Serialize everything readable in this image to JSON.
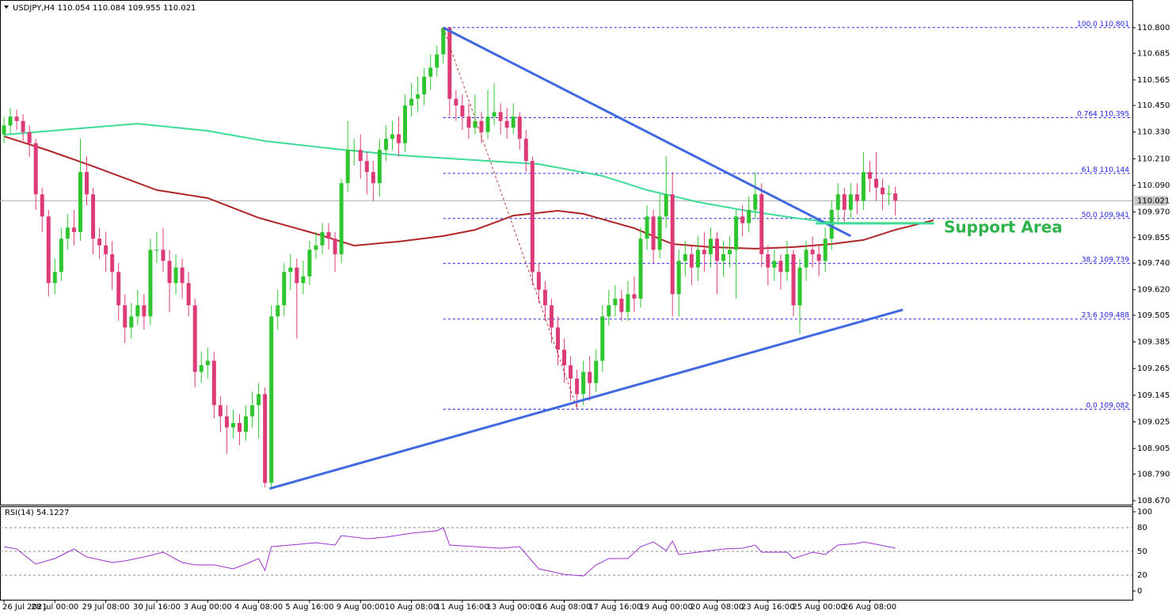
{
  "chart_data": {
    "type": "candlestick",
    "title": "USDJPY,H4  110.054 110.084 109.955 110.021",
    "categories": [
      "26 Jul 2021",
      null,
      null,
      null,
      null,
      null,
      null,
      null,
      "28 Jul 00:00",
      null,
      null,
      null,
      null,
      null,
      null,
      null,
      "29 Jul 08:00",
      null,
      null,
      null,
      null,
      null,
      null,
      null,
      "30 Jul 16:00",
      null,
      null,
      null,
      null,
      null,
      null,
      null,
      "3 Aug 00:00",
      null,
      null,
      null,
      null,
      null,
      null,
      null,
      "4 Aug 08:00",
      null,
      null,
      null,
      null,
      null,
      null,
      null,
      "5 Aug 16:00",
      null,
      null,
      null,
      null,
      null,
      null,
      null,
      "9 Aug 00:00",
      null,
      null,
      null,
      null,
      null,
      null,
      null,
      "10 Aug 08:00",
      null,
      null,
      null,
      null,
      null,
      null,
      null,
      "11 Aug 16:00",
      null,
      null,
      null,
      null,
      null,
      null,
      null,
      "13 Aug 00:00",
      null,
      null,
      null,
      null,
      null,
      null,
      null,
      "16 Aug 08:00",
      null,
      null,
      null,
      null,
      null,
      null,
      null,
      "17 Aug 16:00",
      null,
      null,
      null,
      null,
      null,
      null,
      null,
      "19 Aug 00:00",
      null,
      null,
      null,
      null,
      null,
      null,
      null,
      "20 Aug 08:00",
      null,
      null,
      null,
      null,
      null,
      null,
      null,
      "23 Aug 16:00",
      null,
      null,
      null,
      null,
      null,
      null,
      null,
      "25 Aug 00:00",
      null,
      null,
      null,
      null,
      null,
      null,
      null,
      "26 Aug 08:00",
      null,
      null,
      null,
      null
    ],
    "open": [
      110.32,
      110.36,
      110.4,
      110.38,
      110.33,
      110.28,
      110.05,
      109.95,
      109.65,
      109.7,
      109.85,
      109.9,
      109.88,
      110.15,
      110.05,
      109.85,
      109.82,
      109.78,
      109.7,
      109.55,
      109.45,
      109.5,
      109.55,
      109.5,
      109.8,
      109.8,
      109.75,
      109.65,
      109.72,
      109.65,
      109.55,
      109.25,
      109.28,
      109.3,
      109.1,
      109.05,
      109.0,
      109.02,
      108.98,
      109.05,
      109.1,
      109.15,
      108.75,
      109.5,
      109.55,
      109.7,
      109.72,
      109.65,
      109.68,
      109.8,
      109.82,
      109.88,
      109.85,
      109.78,
      110.1,
      110.25,
      110.25,
      110.2,
      110.15,
      110.1,
      110.25,
      110.3,
      110.32,
      110.28,
      110.45,
      110.48,
      110.5,
      110.58,
      110.62,
      110.68,
      110.8,
      110.48,
      110.45,
      110.4,
      110.35,
      110.38,
      110.33,
      110.4,
      110.42,
      110.38,
      110.35,
      110.4,
      110.3,
      110.2,
      109.7,
      109.62,
      109.55,
      109.45,
      109.35,
      109.28,
      109.22,
      109.15,
      109.25,
      109.2,
      109.3,
      109.5,
      109.55,
      109.58,
      109.52,
      109.6,
      109.58,
      109.85,
      109.95,
      109.8,
      109.95,
      110.05,
      109.6,
      109.75,
      109.78,
      109.72,
      109.8,
      109.78,
      109.85,
      109.75,
      109.78,
      109.8,
      109.95,
      109.92,
      109.98,
      110.05,
      109.78,
      109.72,
      109.75,
      109.7,
      109.78,
      109.55,
      109.72,
      109.8,
      109.78,
      109.75,
      109.85,
      109.98,
      110.05,
      109.98,
      110.05,
      110.02,
      110.15,
      110.12,
      110.08,
      110.05,
      110.054
    ],
    "high": [
      110.4,
      110.44,
      110.43,
      110.41,
      110.36,
      110.3,
      110.08,
      109.98,
      109.76,
      109.9,
      109.96,
      109.98,
      110.3,
      110.22,
      110.08,
      109.9,
      109.88,
      109.84,
      109.74,
      109.6,
      109.56,
      109.62,
      109.6,
      109.85,
      109.88,
      109.9,
      109.8,
      109.78,
      109.76,
      109.7,
      109.58,
      109.34,
      109.36,
      109.34,
      109.14,
      109.1,
      109.08,
      109.06,
      109.1,
      109.16,
      109.2,
      109.18,
      109.55,
      109.62,
      109.74,
      109.78,
      109.76,
      109.75,
      109.84,
      109.88,
      109.92,
      109.92,
      109.88,
      110.12,
      110.38,
      110.3,
      110.32,
      110.24,
      110.2,
      110.3,
      110.36,
      110.38,
      110.4,
      110.5,
      110.55,
      110.58,
      110.62,
      110.68,
      110.72,
      110.801,
      110.8,
      110.52,
      110.5,
      110.46,
      110.5,
      110.42,
      110.52,
      110.55,
      110.46,
      110.44,
      110.46,
      110.42,
      110.34,
      110.22,
      109.74,
      109.66,
      109.58,
      109.5,
      109.4,
      109.32,
      109.26,
      109.3,
      109.32,
      109.35,
      109.55,
      109.62,
      109.64,
      109.62,
      109.66,
      109.68,
      109.9,
      110.0,
      109.98,
      110.05,
      110.22,
      110.15,
      109.8,
      109.84,
      109.82,
      109.86,
      109.88,
      109.9,
      109.88,
      109.84,
      109.86,
      109.98,
      110.0,
      110.04,
      110.15,
      110.1,
      109.82,
      109.8,
      109.78,
      109.84,
      109.8,
      109.76,
      109.84,
      109.86,
      109.82,
      109.9,
      110.02,
      110.1,
      110.08,
      110.1,
      110.1,
      110.24,
      110.2,
      110.24,
      110.12,
      110.09,
      110.084
    ],
    "low": [
      110.28,
      110.32,
      110.34,
      110.29,
      110.22,
      109.98,
      109.88,
      109.59,
      109.6,
      109.66,
      109.8,
      109.82,
      109.84,
      110.0,
      109.78,
      109.76,
      109.7,
      109.62,
      109.48,
      109.38,
      109.4,
      109.46,
      109.44,
      109.46,
      109.74,
      109.7,
      109.52,
      109.6,
      109.58,
      109.5,
      109.18,
      109.2,
      109.22,
      109.04,
      108.98,
      108.88,
      108.95,
      108.92,
      108.94,
      109.0,
      108.95,
      108.73,
      108.72,
      109.44,
      109.5,
      109.62,
      109.4,
      109.6,
      109.64,
      109.76,
      109.78,
      109.8,
      109.7,
      109.74,
      110.06,
      110.18,
      110.12,
      110.05,
      110.02,
      110.04,
      110.2,
      110.25,
      110.22,
      110.24,
      110.4,
      110.42,
      110.45,
      110.52,
      110.58,
      110.64,
      110.4,
      110.38,
      110.34,
      110.3,
      110.32,
      110.28,
      110.3,
      110.36,
      110.32,
      110.3,
      110.32,
      110.25,
      110.15,
      109.64,
      109.56,
      109.48,
      109.38,
      109.28,
      109.2,
      109.12,
      109.082,
      109.1,
      109.12,
      109.16,
      109.25,
      109.46,
      109.5,
      109.48,
      109.48,
      109.52,
      109.54,
      109.8,
      109.74,
      109.76,
      109.9,
      109.5,
      109.5,
      109.68,
      109.64,
      109.66,
      109.7,
      109.72,
      109.6,
      109.68,
      109.72,
      109.58,
      109.86,
      109.88,
      109.94,
      109.72,
      109.64,
      109.66,
      109.62,
      109.66,
      109.5,
      109.42,
      109.66,
      109.72,
      109.68,
      109.7,
      109.8,
      109.92,
      109.92,
      109.94,
      109.96,
      109.98,
      110.06,
      110.02,
      109.98,
      110.0,
      109.955
    ],
    "close": [
      110.36,
      110.4,
      110.38,
      110.33,
      110.28,
      110.05,
      109.95,
      109.65,
      109.7,
      109.85,
      109.9,
      109.88,
      110.15,
      110.05,
      109.85,
      109.82,
      109.78,
      109.7,
      109.55,
      109.45,
      109.5,
      109.55,
      109.5,
      109.8,
      109.8,
      109.75,
      109.65,
      109.72,
      109.65,
      109.55,
      109.25,
      109.28,
      109.3,
      109.1,
      109.05,
      109.0,
      109.02,
      108.98,
      109.05,
      109.1,
      109.15,
      108.75,
      109.5,
      109.55,
      109.7,
      109.72,
      109.65,
      109.68,
      109.8,
      109.82,
      109.88,
      109.85,
      109.78,
      110.1,
      110.25,
      110.25,
      110.2,
      110.15,
      110.1,
      110.25,
      110.3,
      110.32,
      110.28,
      110.45,
      110.48,
      110.5,
      110.58,
      110.62,
      110.68,
      110.8,
      110.48,
      110.45,
      110.4,
      110.35,
      110.38,
      110.33,
      110.4,
      110.42,
      110.38,
      110.35,
      110.4,
      110.3,
      110.2,
      109.7,
      109.62,
      109.55,
      109.45,
      109.35,
      109.28,
      109.22,
      109.15,
      109.25,
      109.2,
      109.3,
      109.5,
      109.55,
      109.58,
      109.52,
      109.6,
      109.58,
      109.85,
      109.95,
      109.8,
      109.95,
      110.05,
      109.6,
      109.75,
      109.78,
      109.72,
      109.8,
      109.78,
      109.85,
      109.75,
      109.78,
      109.8,
      109.95,
      109.92,
      109.98,
      110.05,
      109.78,
      109.72,
      109.75,
      109.7,
      109.78,
      109.55,
      109.72,
      109.8,
      109.78,
      109.75,
      109.85,
      109.98,
      110.05,
      109.98,
      110.05,
      110.02,
      110.15,
      110.12,
      110.08,
      110.05,
      110.054,
      110.021
    ],
    "bull_color": "#2fc52f",
    "bear_color": "#dc3b78",
    "ylim": [
      108.652,
      110.925
    ],
    "yticks": [
      {
        "value": 110.8,
        "label": "110.800"
      },
      110.685,
      110.565,
      {
        "value": 110.45,
        "label": "110.450"
      },
      {
        "value": 110.33,
        "label": "110.330"
      },
      {
        "value": 110.21,
        "label": "110.210"
      },
      {
        "value": 110.09,
        "label": "110.090"
      },
      {
        "value": 109.97,
        "label": "109.970"
      },
      109.855,
      {
        "value": 109.74,
        "label": "109.740"
      },
      {
        "value": 109.62,
        "label": "109.620"
      },
      109.505,
      109.385,
      109.265,
      109.145,
      109.025,
      108.905,
      {
        "value": 108.79,
        "label": "108.790"
      },
      {
        "value": 108.67,
        "label": "108.670"
      }
    ],
    "last_price": 110.021,
    "overlays": [
      {
        "color": "#3ddc97",
        "x": [
          0,
          12,
          21,
          32,
          41,
          52,
          62,
          74,
          84,
          94,
          101,
          109,
          116,
          124,
          131
        ],
        "values": [
          110.318,
          110.347,
          110.368,
          110.336,
          110.29,
          110.254,
          110.226,
          110.204,
          110.186,
          110.133,
          110.069,
          110.015,
          109.979,
          109.944,
          109.919
        ]
      },
      {
        "color": "#b0252a",
        "x": [
          0,
          7,
          14,
          24,
          32,
          40,
          49,
          55,
          62,
          69,
          74,
          80,
          87,
          91,
          99,
          105,
          111,
          118,
          124,
          130,
          135,
          140,
          146
        ],
        "values": [
          110.311,
          110.247,
          110.176,
          110.069,
          110.033,
          109.944,
          109.872,
          109.819,
          109.837,
          109.862,
          109.89,
          109.954,
          109.976,
          109.962,
          109.897,
          109.826,
          109.812,
          109.805,
          109.812,
          109.826,
          109.844,
          109.89,
          109.933
        ]
      }
    ],
    "trendlines": [
      {
        "color": "#4169e1",
        "x": [
          69,
          133
        ],
        "values": [
          110.8,
          109.862
        ]
      },
      {
        "color": "#4169e1",
        "x": [
          41.7,
          141.2
        ],
        "values": [
          108.724,
          109.53
        ]
      },
      {
        "color": "#3ddc97",
        "x": [
          127.5,
          146.1
        ],
        "values": [
          109.919,
          109.919
        ]
      },
      {
        "color": "#c0392b",
        "dash": true,
        "x": [
          69,
          90
        ],
        "values": [
          110.8,
          109.087
        ]
      }
    ],
    "fib_color": "#2020e0",
    "fib_start": 69,
    "fib_levels": [
      {
        "level": "100.0",
        "value": 110.801
      },
      {
        "level": "0.764",
        "value": 110.395
      },
      {
        "level": "61.8",
        "value": 110.144
      },
      {
        "level": "50.0",
        "value": 109.941
      },
      {
        "level": "38.2",
        "value": 109.739
      },
      {
        "level": "23.6",
        "value": 109.488
      },
      {
        "level": "0.0",
        "value": 109.082
      }
    ],
    "annotation": {
      "text": "Support Area",
      "color": "#2db34a"
    },
    "rsi": {
      "title": "RSI(14) 54.1227",
      "color": "#9932cc",
      "ylim": [
        0,
        100
      ],
      "yticks": [
        100,
        80,
        50,
        20,
        0
      ],
      "x": [
        0,
        2,
        5,
        8,
        11,
        13,
        17,
        19,
        22,
        25,
        28,
        30,
        33,
        36,
        38,
        40,
        41,
        42,
        45,
        49,
        52,
        53,
        57,
        60,
        64,
        68,
        69,
        70,
        74,
        78,
        81,
        84,
        88,
        91,
        93,
        95,
        98,
        100,
        102,
        104,
        105,
        106,
        109,
        113,
        116,
        118,
        119,
        123,
        124,
        127,
        129,
        131,
        134,
        135,
        137,
        140
      ],
      "values": [
        56,
        53,
        34,
        41,
        53,
        43,
        36,
        38,
        43,
        49,
        36,
        33,
        33,
        28,
        34,
        41,
        26,
        56,
        58,
        61,
        58,
        70,
        66,
        68,
        73,
        76,
        80,
        58,
        56,
        54,
        56,
        28,
        21,
        19,
        33,
        41,
        41,
        56,
        62,
        51,
        63,
        46,
        49,
        53,
        54,
        58,
        49,
        49,
        41,
        49,
        46,
        58,
        60,
        62,
        59,
        54.1227
      ]
    }
  }
}
